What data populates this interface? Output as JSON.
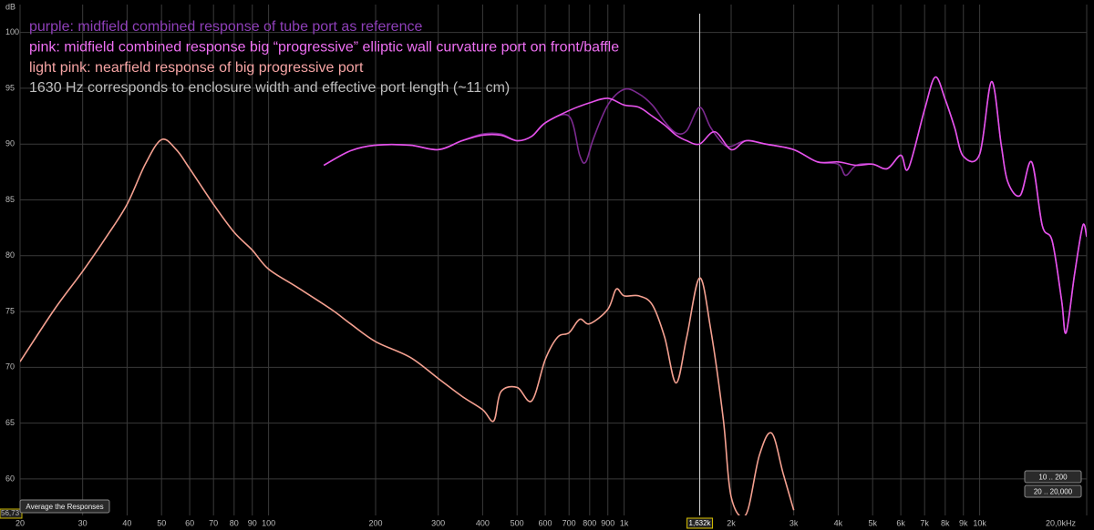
{
  "chart_data": {
    "type": "line",
    "y_label": "dB",
    "xscale": "log",
    "xlim": [
      20,
      20000
    ],
    "ylim": [
      56.73,
      102.5
    ],
    "ylim_bottom_label": "56,73",
    "grid": true,
    "xticks": [
      20,
      30,
      40,
      50,
      60,
      70,
      80,
      90,
      100,
      200,
      300,
      400,
      500,
      600,
      700,
      800,
      900,
      {
        "value": 1000,
        "label": "1k"
      },
      {
        "value": 2000,
        "label": "2k"
      },
      {
        "value": 3000,
        "label": "3k"
      },
      {
        "value": 4000,
        "label": "4k"
      },
      {
        "value": 5000,
        "label": "5k"
      },
      {
        "value": 6000,
        "label": "6k"
      },
      {
        "value": 7000,
        "label": "7k"
      },
      {
        "value": 8000,
        "label": "8k"
      },
      {
        "value": 9000,
        "label": "9k"
      },
      {
        "value": 10000,
        "label": "10k"
      },
      {
        "value": 20000,
        "label": "20,0kHz"
      }
    ],
    "yticks": [
      60,
      65,
      70,
      75,
      80,
      85,
      90,
      95,
      100
    ],
    "cursor": {
      "value": 1632,
      "label": "1,632k"
    },
    "series": [
      {
        "name": "purple: midfield combined response of tube port as reference",
        "color": "#7b2a8f",
        "text_color": "#8e3fb8",
        "x": [
          143,
          170,
          200,
          250,
          300,
          350,
          400,
          450,
          500,
          550,
          600,
          700,
          750,
          780,
          820,
          900,
          1000,
          1100,
          1200,
          1300,
          1400,
          1500,
          1630,
          1750,
          1900,
          2000,
          2200,
          2500,
          3000,
          3500,
          4000,
          4200,
          4500,
          5000,
          5500,
          6000,
          6300,
          7000,
          7500,
          8000,
          8500,
          9000,
          10000,
          10800,
          11500,
          12000,
          13000,
          14000,
          15000,
          16000,
          17000,
          17500,
          18500,
          19500,
          20000
        ],
        "values": [
          88.1,
          89.4,
          89.9,
          89.9,
          89.5,
          90.3,
          90.9,
          90.9,
          90.3,
          90.7,
          91.9,
          92.5,
          89,
          88.4,
          90.5,
          93.5,
          94.9,
          94.5,
          93.5,
          92,
          91,
          91.2,
          93.3,
          91.5,
          90,
          89.8,
          90.3,
          90,
          89.5,
          88.4,
          88.2,
          87.2,
          88.1,
          88.2,
          87.8,
          89,
          87.8,
          93.1,
          96,
          94,
          91.5,
          88.9,
          89.1,
          95.6,
          89.9,
          86.6,
          85.4,
          88.4,
          82.7,
          81.3,
          76,
          73.1,
          78.4,
          82.7,
          81.7
        ]
      },
      {
        "name": "pink: midfield combined response big “progressive” elliptic wall curvature port on front/baffle",
        "color": "#e552ea",
        "text_color": "#f070f4",
        "x": [
          143,
          170,
          200,
          250,
          300,
          350,
          400,
          450,
          500,
          550,
          600,
          700,
          800,
          900,
          1000,
          1100,
          1200,
          1300,
          1400,
          1500,
          1630,
          1800,
          2000,
          2200,
          2500,
          3000,
          3500,
          4000,
          4500,
          5000,
          5500,
          6000,
          6300,
          7000,
          7500,
          8000,
          8500,
          9000,
          10000,
          10800,
          11500,
          12000,
          13000,
          14000,
          15000,
          16000,
          17000,
          17500,
          18500,
          19500,
          20000
        ],
        "values": [
          88.1,
          89.4,
          89.9,
          89.9,
          89.5,
          90.3,
          90.8,
          90.8,
          90.3,
          90.7,
          91.9,
          93,
          93.7,
          94.1,
          93.5,
          93.3,
          92.5,
          91.7,
          90.8,
          90.3,
          90,
          91.1,
          89.5,
          90.3,
          90,
          89.5,
          88.4,
          88.4,
          88.1,
          88.2,
          87.8,
          89,
          87.8,
          93.1,
          96,
          94,
          91.5,
          88.9,
          89.1,
          95.6,
          89.9,
          86.6,
          85.4,
          88.4,
          82.7,
          81.3,
          76,
          73.1,
          78.4,
          82.7,
          81.7
        ]
      },
      {
        "name": "light pink: nearfield response of big progressive port",
        "color": "#f4a090",
        "text_color": "#f6a4a4",
        "x": [
          20,
          25,
          30,
          35,
          40,
          45,
          50,
          55,
          60,
          70,
          80,
          90,
          100,
          120,
          150,
          170,
          200,
          250,
          300,
          350,
          400,
          430,
          450,
          500,
          550,
          600,
          650,
          700,
          750,
          800,
          900,
          950,
          1000,
          1100,
          1200,
          1300,
          1400,
          1500,
          1630,
          1750,
          1900,
          2000,
          2200,
          2400,
          2600,
          2800,
          3000
        ],
        "values": [
          70.5,
          75.2,
          78.6,
          81.7,
          84.6,
          88.2,
          90.4,
          89.5,
          87.8,
          84.6,
          82.1,
          80.5,
          78.8,
          77.2,
          75.2,
          73.9,
          72.3,
          70.9,
          69,
          67.4,
          66.2,
          65.2,
          67.8,
          68.2,
          67,
          70.7,
          72.7,
          73.1,
          74.3,
          73.9,
          75.2,
          77,
          76.4,
          76.4,
          75.6,
          72.7,
          68.6,
          72.7,
          78,
          73.5,
          65.4,
          58.4,
          56.8,
          62.1,
          64.1,
          60.5,
          57.2
        ]
      }
    ],
    "annotations": [
      {
        "text": "1630 Hz corresponds to enclosure width and effective port length  (~11 cm)",
        "color": "#bdbdbd"
      }
    ]
  },
  "ui": {
    "buttons": [
      "Average the Responses",
      "10 .. 200",
      "20 .. 20,000"
    ]
  }
}
